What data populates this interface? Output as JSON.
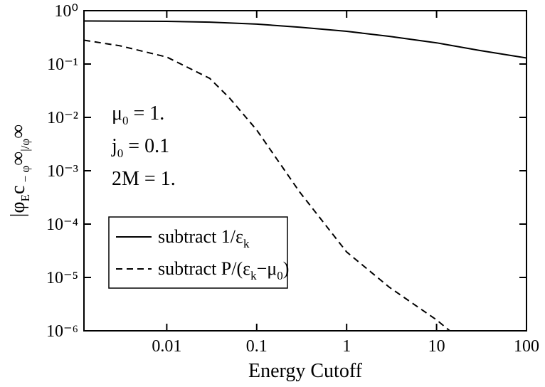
{
  "chart_data": {
    "type": "line",
    "xlabel": "Energy Cutoff",
    "ylabel": [
      "|φ",
      "E",
      "c",
      " − φ",
      "∞",
      "|/φ",
      "∞"
    ],
    "annotations": [
      [
        "μ",
        "0",
        " = 1."
      ],
      [
        "j",
        "0",
        " = 0.1"
      ],
      [
        "2M = 1."
      ]
    ],
    "xlog": true,
    "ylog": true,
    "xlim": [
      0.0012,
      100
    ],
    "ylim": [
      1e-06,
      1
    ],
    "xticks": [
      0.01,
      0.1,
      1,
      10,
      100
    ],
    "yticks": [
      {
        "value": 1,
        "label": "10⁰"
      },
      {
        "value": 0.1,
        "label": "10⁻¹"
      },
      {
        "value": 0.01,
        "label": "10⁻²"
      },
      {
        "value": 0.001,
        "label": "10⁻³"
      },
      {
        "value": 0.0001,
        "label": "10⁻⁴"
      },
      {
        "value": 1e-05,
        "label": "10⁻⁵"
      },
      {
        "value": 1e-06,
        "label": "10⁻⁶"
      }
    ],
    "legend": "lower left",
    "series": [
      {
        "name": [
          "subtract 1/ε",
          "k"
        ],
        "color": "#000000",
        "dash": "none",
        "x": [
          0.0012,
          0.01,
          0.03,
          0.1,
          0.3,
          1,
          3,
          10,
          30,
          100
        ],
        "values": [
          0.64,
          0.63,
          0.61,
          0.56,
          0.49,
          0.41,
          0.33,
          0.25,
          0.18,
          0.13
        ]
      },
      {
        "name": [
          "subtract P/(ε",
          "k",
          "−μ",
          "0",
          ")"
        ],
        "color": "#000000",
        "dash": "9,6",
        "x": [
          0.0012,
          0.003,
          0.01,
          0.03,
          0.05,
          0.1,
          0.3,
          1,
          3,
          10,
          14
        ],
        "values": [
          0.28,
          0.22,
          0.135,
          0.054,
          0.023,
          0.0058,
          0.0004,
          3e-05,
          6.5e-06,
          1.6e-06,
          1e-06
        ]
      }
    ]
  }
}
